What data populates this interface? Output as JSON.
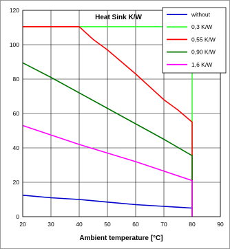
{
  "chart_data": {
    "type": "line",
    "title": "Heat Sink K/W",
    "xlabel": "Ambient temperature [°C]",
    "ylabel": "",
    "xlim": [
      20,
      90
    ],
    "ylim": [
      0,
      120
    ],
    "x_ticks": [
      "20",
      "30",
      "40",
      "50",
      "60",
      "70",
      "80",
      "90"
    ],
    "y_ticks": [
      "0",
      "20",
      "40",
      "60",
      "80",
      "100",
      "120"
    ],
    "grid": true,
    "legend_position": "top-right",
    "series": [
      {
        "name": "without",
        "color": "#0000cc",
        "points": [
          [
            20,
            12.5
          ],
          [
            30,
            11
          ],
          [
            40,
            10
          ],
          [
            50,
            8.5
          ],
          [
            60,
            7
          ],
          [
            70,
            6
          ],
          [
            80,
            5
          ]
        ]
      },
      {
        "name": "0,3 K/W",
        "color": "#33ff33",
        "points": [
          [
            20,
            110.5
          ],
          [
            70,
            110.5
          ],
          [
            72.5,
            105
          ],
          [
            75,
            100
          ],
          [
            78,
            95
          ],
          [
            80,
            90
          ],
          [
            80,
            0
          ]
        ]
      },
      {
        "name": "0,55 K/W",
        "color": "#ff0000",
        "points": [
          [
            20,
            110.5
          ],
          [
            40,
            110.5
          ],
          [
            45,
            103
          ],
          [
            50,
            97
          ],
          [
            55,
            90
          ],
          [
            60,
            83
          ],
          [
            70,
            68
          ],
          [
            75,
            62
          ],
          [
            80,
            55
          ],
          [
            80,
            0
          ]
        ]
      },
      {
        "name": "0,90 K/W",
        "color": "#007700",
        "points": [
          [
            20,
            89.5
          ],
          [
            30,
            81
          ],
          [
            40,
            72
          ],
          [
            50,
            63
          ],
          [
            60,
            54
          ],
          [
            70,
            45
          ],
          [
            80,
            35.5
          ],
          [
            80,
            0
          ]
        ]
      },
      {
        "name": "1,6 K/W",
        "color": "#ff00ff",
        "points": [
          [
            20,
            53
          ],
          [
            30,
            47.5
          ],
          [
            40,
            42
          ],
          [
            50,
            37
          ],
          [
            60,
            32
          ],
          [
            70,
            26.5
          ],
          [
            80,
            21
          ],
          [
            80,
            0
          ]
        ]
      }
    ]
  }
}
